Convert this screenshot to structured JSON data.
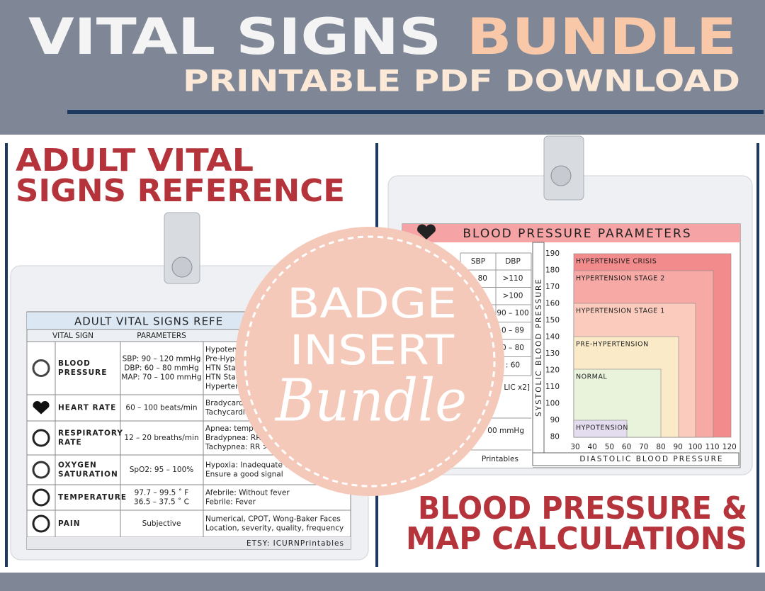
{
  "header": {
    "title": "VITAL SIGNS",
    "title_accent": "BUNDLE",
    "subtitle": "PRINTABLE PDF DOWNLOAD"
  },
  "left": {
    "heading": [
      "ADULT VITAL",
      "SIGNS REFERENCE"
    ],
    "card": {
      "title": "ADULT VITAL SIGNS REFE",
      "columns": [
        "VITAL SIGN",
        "PARAMETERS"
      ],
      "rows": [
        {
          "label": [
            "BLOOD",
            "PRESSURE"
          ],
          "parameters": [
            "SBP: 90 – 120 mmHg",
            "DBP: 60 – 80 mmHg",
            "MAP: 70 – 100 mmHg"
          ],
          "notes": [
            "Hypoten",
            "Pre-Hype",
            "HTN Stag",
            "HTN Stag",
            "Hypertens"
          ]
        },
        {
          "label": [
            "HEART RATE"
          ],
          "parameters": [
            "60 – 100 beats/min"
          ],
          "notes": [
            "Bradycard",
            "Tachycardi"
          ]
        },
        {
          "label": [
            "RESPIRATORY",
            "RATE"
          ],
          "parameters": [
            "12 – 20 breaths/min"
          ],
          "notes": [
            "Apnea: temp",
            "Bradypnea: RR",
            "Tachypnea: RR >2"
          ]
        },
        {
          "label": [
            "OXYGEN",
            "SATURATION"
          ],
          "parameters": [
            "SpO2: 95 – 100%"
          ],
          "notes": [
            "Hypoxia: Inadequate o",
            "Ensure a good signal"
          ]
        },
        {
          "label": [
            "TEMPERATURE"
          ],
          "parameters": [
            "97.7 – 99.5 ˚ F",
            "36.5 – 37.5 ˚ C"
          ],
          "notes": [
            "Afebrile: Without fever",
            "Febrile: Fever"
          ]
        },
        {
          "label": [
            "PAIN"
          ],
          "parameters": [
            "Subjective"
          ],
          "notes": [
            "Numerical, CPOT, Wong-Baker Faces",
            "Location, severity, quality, frequency"
          ]
        }
      ],
      "footer": "ETSY: ICURNPrintables"
    }
  },
  "badge": {
    "lines": [
      "BADGE",
      "INSERT"
    ],
    "script": "Bundle"
  },
  "right": {
    "heading": [
      "BLOOD PRESSURE &",
      "MAP CALCULATIONS"
    ],
    "card": {
      "title": "BLOOD PRESSURE PARAMETERS",
      "table": {
        "columns": [
          "SBP",
          "DBP"
        ],
        "rows": [
          {
            "sbp": "80",
            "dbp": ">110"
          },
          {
            "dbp": ">100"
          },
          {
            "dbp": "90 – 100"
          },
          {
            "dbp": "0 – 89"
          },
          {
            "dbp": "0 – 80"
          },
          {
            "dbp": ": 60"
          }
        ]
      },
      "fragments": [
        "LIC x2]",
        "00 mmHg",
        "Printables"
      ],
      "bp_chart": {
        "y_label": "SYSTOLIC BLOOD PRESSURE",
        "x_label": "DIASTOLIC BLOOD PRESSURE",
        "y_ticks": [
          190,
          180,
          170,
          160,
          150,
          140,
          130,
          120,
          110,
          100,
          90,
          80
        ],
        "x_ticks": [
          30,
          40,
          50,
          60,
          70,
          80,
          90,
          100,
          110,
          120
        ],
        "zones": [
          "HYPERTENSIVE CRISIS",
          "HYPERTENSION STAGE 2",
          "HYPERTENSION STAGE 1",
          "PRE-HYPERTENSION",
          "NORMAL",
          "HYPOTENSION"
        ]
      }
    }
  }
}
